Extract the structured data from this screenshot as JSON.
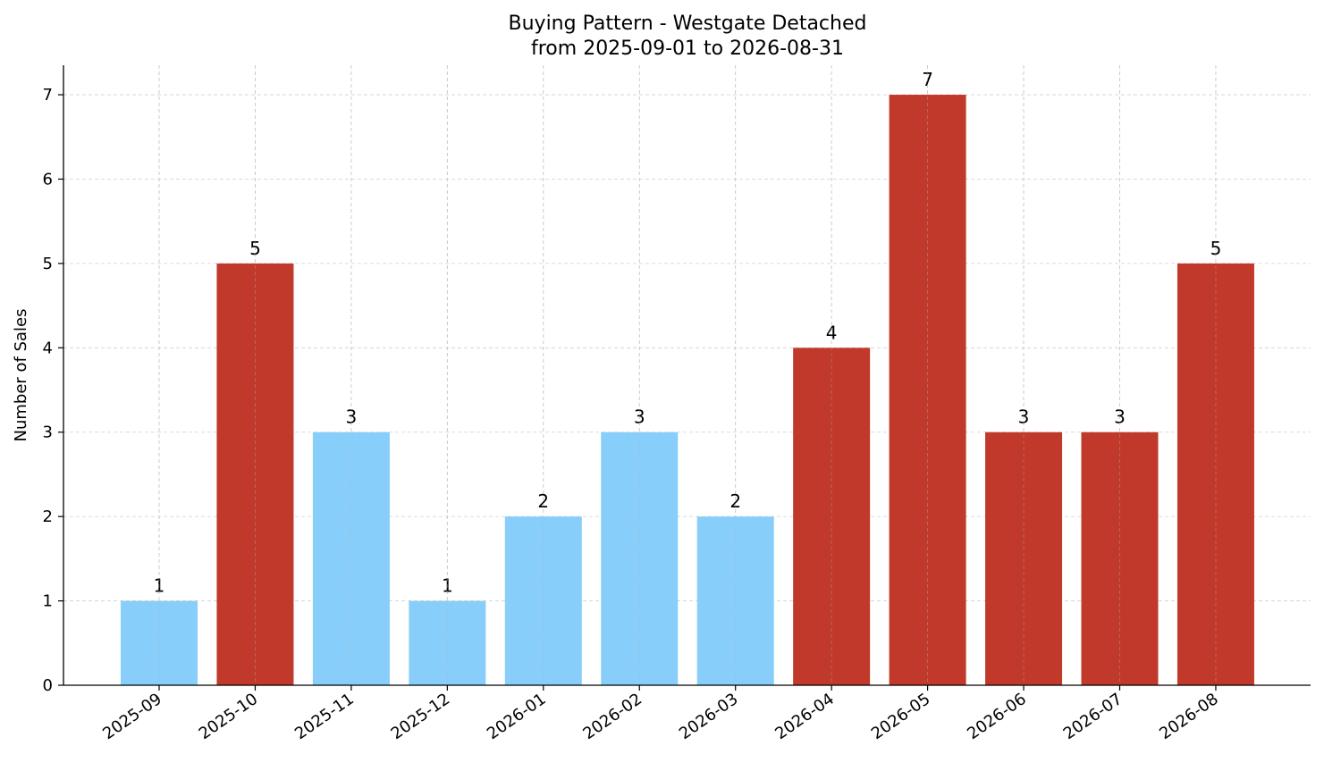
{
  "chart_data": {
    "type": "bar",
    "title": "Buying Pattern - Westgate Detached",
    "subtitle": "from 2025-09-01 to 2026-08-31",
    "xlabel": "",
    "ylabel": "Number of Sales",
    "categories": [
      "2025-09",
      "2025-10",
      "2025-11",
      "2025-12",
      "2026-01",
      "2026-02",
      "2026-03",
      "2026-04",
      "2026-05",
      "2026-06",
      "2026-07",
      "2026-08"
    ],
    "values": [
      1,
      5,
      3,
      1,
      2,
      3,
      2,
      4,
      7,
      3,
      3,
      5
    ],
    "bar_colors": [
      "#87CEFA",
      "#C0392B",
      "#87CEFA",
      "#87CEFA",
      "#87CEFA",
      "#87CEFA",
      "#87CEFA",
      "#C0392B",
      "#C0392B",
      "#C0392B",
      "#C0392B",
      "#C0392B"
    ],
    "ylim": [
      0,
      7.35
    ],
    "yticks": [
      0,
      1,
      2,
      3,
      4,
      5,
      6,
      7
    ],
    "grid": true,
    "legend": "none",
    "data_labels": true
  }
}
